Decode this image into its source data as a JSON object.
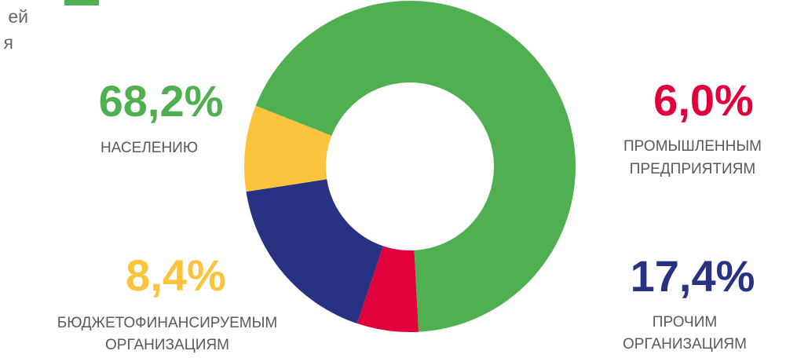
{
  "partial_text": {
    "line1": "ей",
    "line2": "я"
  },
  "colors": {
    "green": "#50af50",
    "red": "#e0003c",
    "navy": "#283282",
    "yellow": "#fcc43c",
    "label_grey": "#595959"
  },
  "chart_data": {
    "type": "pie",
    "donut": true,
    "slices": [
      {
        "value": 68.2,
        "label": "68,2%",
        "category_lines": [
          "НАСЕЛЕНИЮ"
        ],
        "color": "#50af50"
      },
      {
        "value": 6.0,
        "label": "6,0%",
        "category_lines": [
          "ПРОМЫШЛЕННЫМ",
          "ПРЕДПРИЯТИЯМ"
        ],
        "color": "#e0003c"
      },
      {
        "value": 17.4,
        "label": "17,4%",
        "category_lines": [
          "ПРОЧИМ",
          "ОРГАНИЗАЦИЯМ"
        ],
        "color": "#283282"
      },
      {
        "value": 8.4,
        "label": "8,4%",
        "category_lines": [
          "БЮДЖЕТОФИНАНСИРУЕМЫМ",
          "ОРГАНИЗАЦИЯМ"
        ],
        "color": "#fcc43c"
      }
    ]
  }
}
